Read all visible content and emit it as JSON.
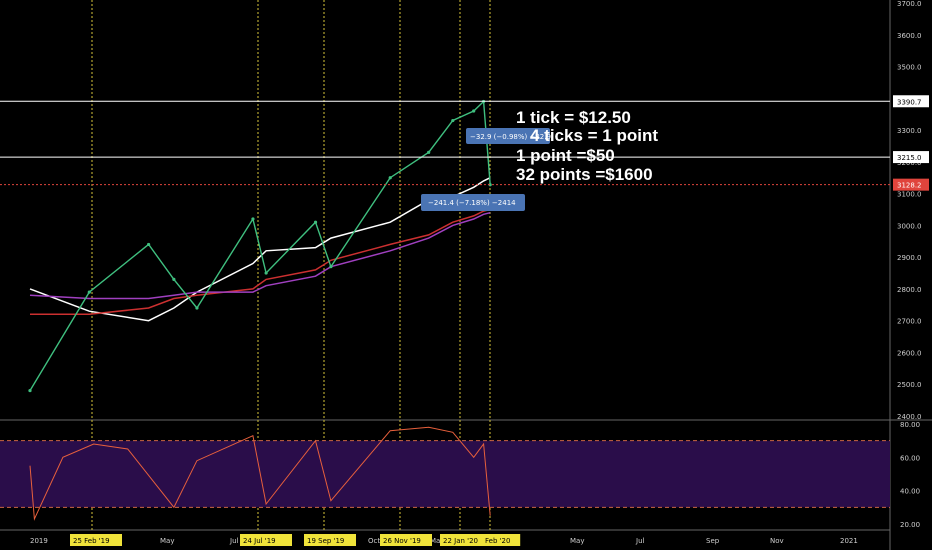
{
  "chart_data": [
    {
      "type": "line",
      "title": "",
      "note": "S&P 500 futures daily candles with moving averages",
      "price_ticks": [
        "3700.0",
        "3600.0",
        "3500.0",
        "3400.0",
        "3300.0",
        "3200.0",
        "3100.0",
        "3000.0",
        "2900.0",
        "2800.0",
        "2700.0",
        "2600.0",
        "2500.0",
        "2400.0"
      ],
      "price_scale": {
        "top": 3700,
        "bottom": 2400
      },
      "x_labels": [
        "2019",
        "May",
        "Jul",
        "Oct",
        "Mar",
        "May",
        "Jul",
        "Sep",
        "Nov",
        "2021"
      ],
      "date_tags": [
        "25 Feb '19",
        "24 Jul '19",
        "19 Sep '19",
        "26 Nov '19",
        "22 Jan '20",
        "Feb '20"
      ],
      "price_tags": [
        {
          "value": 3390.7,
          "label": "3390.7",
          "color": "#ffffff",
          "text_color": "#000000"
        },
        {
          "value": 3215.0,
          "label": "3215.0",
          "color": "#ffffff",
          "text_color": "#000000"
        },
        {
          "value": 3128.2,
          "label": "3128.2",
          "color": "#e0443c",
          "text_color": "#ffffff"
        }
      ],
      "measure_boxes": [
        {
          "label": "−32.9 (−0.98%) −32.9",
          "color": "#4a74b4"
        },
        {
          "label": "−241.4 (−7.18%) −2414",
          "color": "#4a74b4"
        }
      ],
      "annotations": [
        "1 tick = $12.50",
        "4 ticks = 1 point",
        "1 point =$50",
        "32 points =$1600"
      ],
      "price_series": {
        "x": [
          "2019-01-02",
          "2019-02-25",
          "2019-04-20",
          "2019-05-13",
          "2019-06-03",
          "2019-07-24",
          "2019-08-05",
          "2019-09-19",
          "2019-10-03",
          "2019-11-26",
          "2019-12-31",
          "2020-01-22",
          "2020-02-10",
          "2020-02-19",
          "2020-02-25"
        ],
        "y": [
          2480,
          2790,
          2940,
          2830,
          2740,
          3020,
          2850,
          3010,
          2870,
          3150,
          3230,
          3330,
          3360,
          3390,
          3128
        ]
      },
      "moving_averages": [
        {
          "color": "#ffffff",
          "y": [
            2800,
            2730,
            2700,
            2740,
            2790,
            2880,
            2920,
            2930,
            2960,
            3010,
            3080,
            3090,
            3120,
            3140,
            3150
          ]
        },
        {
          "color": "#cc3030",
          "y": [
            2720,
            2720,
            2740,
            2770,
            2780,
            2800,
            2830,
            2860,
            2890,
            2940,
            2970,
            3010,
            3030,
            3045,
            3050
          ]
        },
        {
          "color": "#a040c0",
          "y": [
            2780,
            2770,
            2770,
            2780,
            2790,
            2790,
            2810,
            2840,
            2870,
            2920,
            2960,
            3000,
            3020,
            3035,
            3040
          ]
        }
      ]
    },
    {
      "type": "line",
      "title": "",
      "ylim": [
        20,
        80
      ],
      "y_ticks": [
        "80.00",
        "60.00",
        "40.00",
        "20.00"
      ],
      "bands": {
        "upper": 70,
        "lower": 30
      },
      "series": {
        "x": [
          "2019-01-02",
          "2019-01-06",
          "2019-02-01",
          "2019-03-01",
          "2019-04-01",
          "2019-05-13",
          "2019-06-03",
          "2019-07-24",
          "2019-08-05",
          "2019-09-19",
          "2019-10-03",
          "2019-11-26",
          "2019-12-31",
          "2020-01-22",
          "2020-02-10",
          "2020-02-19",
          "2020-02-25"
        ],
        "y": [
          55,
          23,
          60,
          68,
          65,
          30,
          58,
          73,
          32,
          70,
          34,
          76,
          78,
          75,
          60,
          68,
          25
        ]
      }
    }
  ]
}
